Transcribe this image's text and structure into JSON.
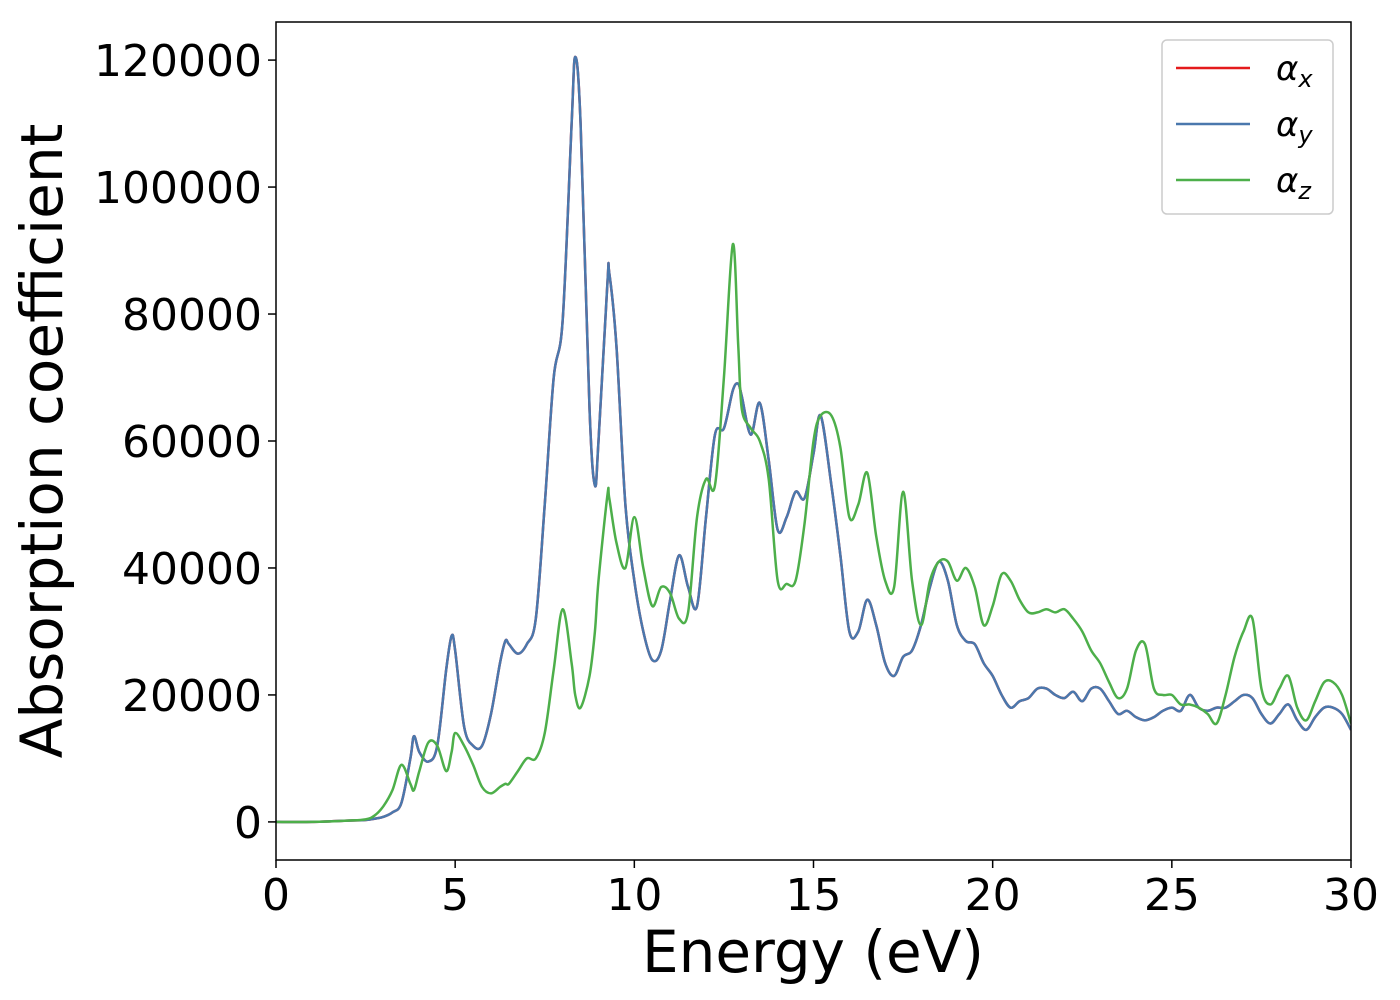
{
  "chart_data": {
    "type": "line",
    "xlabel": "Energy (eV)",
    "ylabel": "Absorption coefficient",
    "x": [
      0,
      1,
      2,
      2.5,
      2.75,
      3,
      3.25,
      3.5,
      3.75,
      3.85,
      4,
      4.25,
      4.5,
      4.75,
      4.9,
      5,
      5.25,
      5.5,
      5.75,
      6,
      6.25,
      6.4,
      6.5,
      6.75,
      7,
      7.25,
      7.5,
      7.75,
      8,
      8.25,
      8.35,
      8.5,
      8.75,
      8.9,
      9,
      9.25,
      9.3,
      9.5,
      9.75,
      10,
      10.25,
      10.5,
      10.75,
      11,
      11.25,
      11.5,
      11.75,
      12,
      12.25,
      12.5,
      12.75,
      12.9,
      13,
      13.25,
      13.5,
      13.75,
      14,
      14.25,
      14.5,
      14.75,
      15,
      15.2,
      15.5,
      15.75,
      16,
      16.25,
      16.5,
      16.75,
      17,
      17.25,
      17.5,
      17.75,
      18,
      18.25,
      18.5,
      18.75,
      19,
      19.25,
      19.5,
      19.75,
      20,
      20.25,
      20.5,
      20.75,
      21,
      21.25,
      21.5,
      21.75,
      22,
      22.25,
      22.5,
      22.75,
      23,
      23.25,
      23.5,
      23.75,
      24,
      24.25,
      24.5,
      24.75,
      25,
      25.25,
      25.5,
      25.75,
      26,
      26.25,
      26.5,
      26.75,
      27,
      27.25,
      27.5,
      27.75,
      28,
      28.25,
      28.5,
      28.75,
      29,
      29.25,
      29.5,
      29.75,
      30
    ],
    "series": [
      {
        "name": "αx",
        "color": "#e41a1c",
        "values": [
          0,
          0,
          200,
          300,
          500,
          800,
          1500,
          3000,
          10000,
          13500,
          11000,
          9500,
          12000,
          24000,
          29300,
          27000,
          15000,
          12000,
          12000,
          17000,
          25000,
          28500,
          28000,
          26500,
          28000,
          32000,
          50000,
          70000,
          79000,
          110000,
          120500,
          110000,
          65000,
          53000,
          60000,
          85000,
          86500,
          75000,
          50000,
          38000,
          30000,
          25500,
          27000,
          35000,
          42000,
          37000,
          34000,
          48000,
          61000,
          62000,
          68000,
          69000,
          67000,
          61000,
          66000,
          57000,
          46000,
          48000,
          52000,
          51000,
          58000,
          64000,
          53000,
          42000,
          30000,
          30000,
          35000,
          31000,
          25000,
          23000,
          26000,
          27000,
          31000,
          37000,
          41000,
          38000,
          31000,
          28500,
          28000,
          25000,
          23000,
          20000,
          18000,
          19000,
          19500,
          21000,
          21000,
          20000,
          19500,
          20500,
          19000,
          21000,
          21000,
          19000,
          17000,
          17500,
          16500,
          16000,
          16500,
          17500,
          18000,
          17500,
          20000,
          18000,
          17500,
          18000,
          18000,
          19000,
          20000,
          19500,
          17000,
          15500,
          17000,
          18500,
          16000,
          14500,
          16500,
          18000,
          18000,
          17000,
          14500
        ]
      },
      {
        "name": "αy",
        "color": "#4a78ad",
        "values": [
          0,
          0,
          200,
          300,
          500,
          800,
          1500,
          3000,
          10000,
          13500,
          11000,
          9500,
          12000,
          24000,
          29300,
          27000,
          15000,
          12000,
          12000,
          17000,
          25000,
          28500,
          28000,
          26500,
          28000,
          32000,
          50000,
          70000,
          79000,
          110000,
          120500,
          110000,
          65000,
          53000,
          60000,
          85000,
          86500,
          75000,
          50000,
          38000,
          30000,
          25500,
          27000,
          35000,
          42000,
          37000,
          34000,
          48000,
          61000,
          62000,
          68000,
          69000,
          67000,
          61000,
          66000,
          57000,
          46000,
          48000,
          52000,
          51000,
          58000,
          64000,
          53000,
          42000,
          30000,
          30000,
          35000,
          31000,
          25000,
          23000,
          26000,
          27000,
          31000,
          37000,
          41000,
          38000,
          31000,
          28500,
          28000,
          25000,
          23000,
          20000,
          18000,
          19000,
          19500,
          21000,
          21000,
          20000,
          19500,
          20500,
          19000,
          21000,
          21000,
          19000,
          17000,
          17500,
          16500,
          16000,
          16500,
          17500,
          18000,
          17500,
          20000,
          18000,
          17500,
          18000,
          18000,
          19000,
          20000,
          19500,
          17000,
          15500,
          17000,
          18500,
          16000,
          14500,
          16500,
          18000,
          18000,
          17000,
          14500
        ]
      },
      {
        "name": "αz",
        "color": "#4daf4a",
        "values": [
          0,
          0,
          200,
          400,
          1000,
          2500,
          5000,
          9000,
          6000,
          5000,
          8000,
          12500,
          12000,
          8000,
          11000,
          14000,
          12000,
          9000,
          5500,
          4500,
          5500,
          6000,
          6000,
          8000,
          10000,
          10000,
          14000,
          24000,
          33500,
          25000,
          20000,
          18000,
          23000,
          30000,
          38000,
          51500,
          51000,
          44000,
          40000,
          48000,
          40000,
          34000,
          37000,
          36000,
          32000,
          33000,
          48000,
          54000,
          53000,
          70000,
          91000,
          75000,
          65000,
          62000,
          60000,
          54000,
          38000,
          37500,
          38000,
          47000,
          60000,
          64000,
          64000,
          59000,
          48000,
          50000,
          55000,
          45000,
          38000,
          37000,
          52000,
          38000,
          31000,
          38000,
          41000,
          41000,
          38000,
          40000,
          37000,
          31000,
          34000,
          39000,
          38000,
          35000,
          33000,
          33000,
          33500,
          33000,
          33500,
          32000,
          30000,
          27000,
          25000,
          22000,
          19500,
          21000,
          27000,
          28000,
          21000,
          20000,
          20000,
          18500,
          18500,
          18000,
          17000,
          15500,
          20000,
          26000,
          30000,
          32000,
          21000,
          18500,
          21000,
          23000,
          18000,
          16000,
          19000,
          22000,
          22000,
          20000,
          15500
        ]
      }
    ],
    "xlim": [
      0,
      30
    ],
    "xticks": [
      0,
      5,
      10,
      15,
      20,
      25,
      30
    ],
    "ylim": [
      -6000,
      126000
    ],
    "yticks": [
      0,
      20000,
      40000,
      60000,
      80000,
      100000,
      120000
    ],
    "legend": "upper right"
  }
}
